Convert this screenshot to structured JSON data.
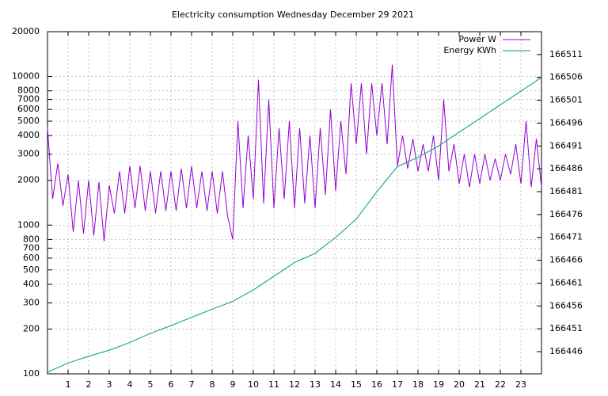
{
  "chart_data": {
    "type": "line",
    "title": "Electricity consumption Wednesday December 29 2021",
    "xlim": [
      0,
      24
    ],
    "xticks": [
      1,
      2,
      3,
      4,
      5,
      6,
      7,
      8,
      9,
      10,
      11,
      12,
      13,
      14,
      15,
      16,
      17,
      18,
      19,
      20,
      21,
      22,
      23
    ],
    "ylim": [
      100,
      20000
    ],
    "ylog": true,
    "yticks": [
      100,
      200,
      300,
      400,
      500,
      600,
      700,
      800,
      1000,
      2000,
      3000,
      4000,
      5000,
      6000,
      7000,
      8000,
      10000,
      20000
    ],
    "y2lim": [
      166441.15,
      166516
    ],
    "y2ticks": [
      166446,
      166451,
      166456,
      166461,
      166466,
      166471,
      166476,
      166481,
      166486,
      166491,
      166496,
      166501,
      166506,
      166511
    ],
    "grid": true,
    "legend": "top-right",
    "series": [
      {
        "name": "Power W",
        "color": "#9400d3",
        "x": [
          0,
          0.25,
          0.5,
          0.75,
          1,
          1.25,
          1.5,
          1.75,
          2,
          2.25,
          2.5,
          2.75,
          3,
          3.25,
          3.5,
          3.75,
          4,
          4.25,
          4.5,
          4.75,
          5,
          5.25,
          5.5,
          5.75,
          6,
          6.25,
          6.5,
          6.75,
          7,
          7.25,
          7.5,
          7.75,
          8,
          8.25,
          8.5,
          8.75,
          9,
          9.25,
          9.5,
          9.75,
          10,
          10.25,
          10.5,
          10.75,
          11,
          11.25,
          11.5,
          11.75,
          12,
          12.25,
          12.5,
          12.75,
          13,
          13.25,
          13.5,
          13.75,
          14,
          14.25,
          14.5,
          14.75,
          15,
          15.25,
          15.5,
          15.75,
          16,
          16.25,
          16.5,
          16.75,
          17,
          17.25,
          17.5,
          17.75,
          18,
          18.25,
          18.5,
          18.75,
          19,
          19.25,
          19.5,
          19.75,
          20,
          20.25,
          20.5,
          20.75,
          21,
          21.25,
          21.5,
          21.75,
          22,
          22.25,
          22.5,
          22.75,
          23,
          23.25,
          23.5,
          23.75,
          24
        ],
        "values": [
          4500,
          1500,
          2600,
          1350,
          2200,
          900,
          2000,
          880,
          2000,
          850,
          1950,
          780,
          1850,
          1200,
          2300,
          1200,
          2500,
          1300,
          2500,
          1250,
          2300,
          1200,
          2300,
          1250,
          2300,
          1250,
          2400,
          1300,
          2500,
          1300,
          2300,
          1250,
          2300,
          1200,
          2300,
          1150,
          800,
          5000,
          1300,
          4000,
          1500,
          9500,
          1400,
          7000,
          1300,
          4500,
          1500,
          5000,
          1300,
          4500,
          1400,
          4000,
          1300,
          4500,
          1600,
          6000,
          1700,
          5000,
          2200,
          9000,
          3500,
          9000,
          3000,
          9000,
          4000,
          9000,
          3500,
          12000,
          2500,
          4000,
          2400,
          3800,
          2300,
          3500,
          2300,
          4000,
          2000,
          7000,
          2300,
          3500,
          1900,
          3000,
          1800,
          3000,
          1900,
          3000,
          2000,
          2800,
          2000,
          3000,
          2200,
          3500,
          1900,
          5000,
          1800,
          3800,
          1800
        ]
      },
      {
        "name": "Energy KWh",
        "color": "#009e73",
        "axis": "y2",
        "x": [
          0,
          1,
          2,
          3,
          4,
          5,
          6,
          7,
          8,
          9,
          10,
          11,
          12,
          13,
          14,
          15,
          16,
          17,
          18,
          19,
          20,
          21,
          22,
          23,
          24
        ],
        "values": [
          166441.5,
          166443.5,
          166445,
          166446.3,
          166448,
          166450,
          166451.7,
          166453.5,
          166455.3,
          166457,
          166459.5,
          166462.5,
          166465.5,
          166467.5,
          166471,
          166475,
          166481,
          166486.5,
          166488.5,
          166491,
          166494,
          166497,
          166500,
          166503,
          166506
        ]
      }
    ]
  }
}
